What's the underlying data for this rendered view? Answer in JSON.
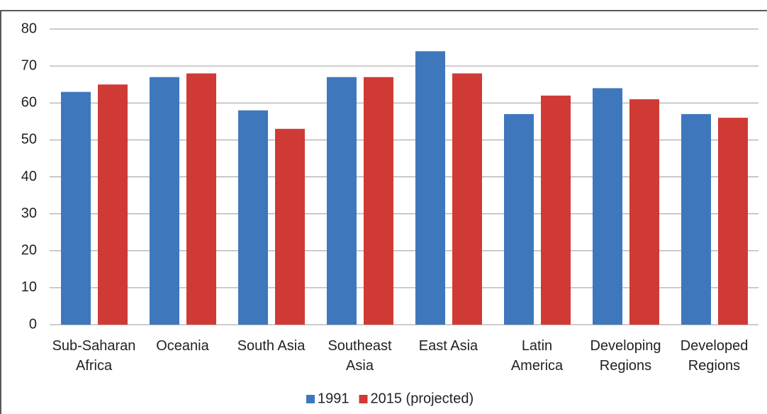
{
  "chart_data": {
    "type": "bar",
    "categories": [
      "Sub-Saharan\nAfrica",
      "Oceania",
      "South Asia",
      "Southeast\nAsia",
      "East Asia",
      "Latin\nAmerica",
      "Developing\nRegions",
      "Developed\nRegions"
    ],
    "series": [
      {
        "name": "1991",
        "color": "#3f77bd",
        "values": [
          63,
          67,
          58,
          67,
          74,
          57,
          64,
          57
        ]
      },
      {
        "name": "2015 (projected)",
        "color": "#d03a35",
        "values": [
          65,
          68,
          53,
          67,
          68,
          62,
          61,
          56
        ]
      }
    ],
    "ylim": [
      0,
      80
    ],
    "yticks": [
      0,
      10,
      20,
      30,
      40,
      50,
      60,
      70,
      80
    ],
    "grid": true,
    "legend": "bottom"
  }
}
